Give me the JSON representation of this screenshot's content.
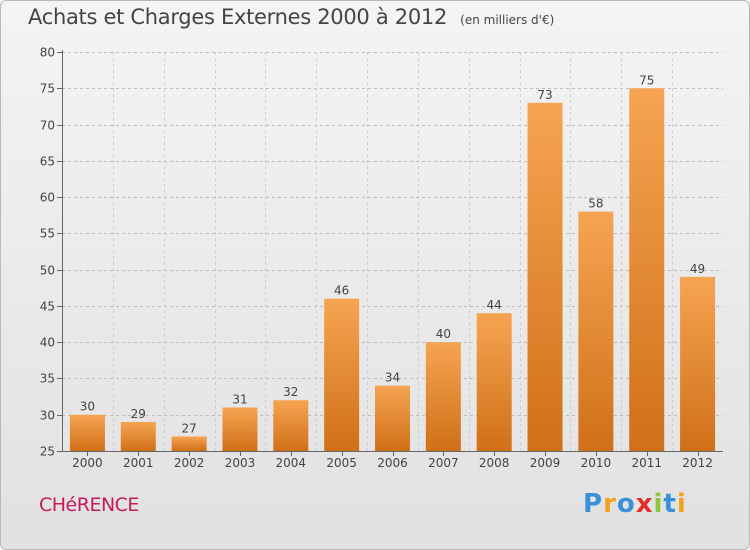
{
  "header": {
    "title": "Achats et Charges Externes 2000 à 2012",
    "unit": "(en milliers d'€)"
  },
  "footer": {
    "place": "CHéRENCE",
    "brand": "Proxiti"
  },
  "colors": {
    "bar_top": "#f6a452",
    "bar_bottom": "#d07018",
    "place": "#c71a5c",
    "brand_letters": [
      "#3a8fd6",
      "#f2a21b",
      "#3a8fd6",
      "#e0302a",
      "#8cc63f",
      "#3a8fd6",
      "#f2a21b"
    ]
  },
  "chart_data": {
    "type": "bar",
    "title": "Achats et Charges Externes 2000 à 2012",
    "subtitle": "(en milliers d'€)",
    "xlabel": "",
    "ylabel": "",
    "categories": [
      "2000",
      "2001",
      "2002",
      "2003",
      "2004",
      "2005",
      "2006",
      "2007",
      "2008",
      "2009",
      "2010",
      "2011",
      "2012"
    ],
    "values": [
      30,
      29,
      27,
      31,
      32,
      46,
      34,
      40,
      44,
      73,
      58,
      75,
      49
    ],
    "data_labels": [
      "30",
      "29",
      "27",
      "31",
      "32",
      "46",
      "34",
      "40",
      "44",
      "73",
      "58",
      "75",
      "49"
    ],
    "ylim": [
      25,
      80
    ],
    "yticks": [
      25,
      30,
      35,
      40,
      45,
      50,
      55,
      60,
      65,
      70,
      75,
      80
    ],
    "grid": true,
    "legend": "none"
  }
}
